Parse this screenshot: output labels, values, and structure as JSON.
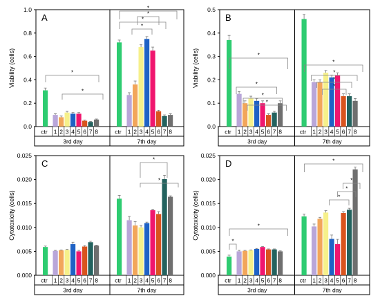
{
  "figure": {
    "panels_note": "",
    "colors": {
      "ctr": "#2ecc71",
      "s1": "#b9a6d9",
      "s2": "#f2a65a",
      "s3": "#f6f08a",
      "s4": "#1f62c5",
      "s5": "#f0166e",
      "s6": "#d9541e",
      "s7": "#23625e",
      "s8": "#6f6f6f"
    }
  },
  "chart_data": [
    {
      "panel": "A",
      "type": "bar",
      "ylabel": "Viability (cells)",
      "ylim": [
        0,
        1.0
      ],
      "yticks": [
        "0.0",
        "0.2",
        "0.4",
        "0.6",
        "0.8",
        "1.0"
      ],
      "categories": [
        "ctr",
        "1",
        "2",
        "3",
        "4",
        "5",
        "6",
        "7",
        "8"
      ],
      "groups": [
        "3rd day",
        "7th day"
      ],
      "series": [
        {
          "group": "3rd day",
          "values": [
            0.31,
            0.1,
            0.08,
            0.12,
            0.11,
            0.11,
            0.05,
            0.04,
            0.06
          ],
          "errors": [
            0.02,
            0.01,
            0.01,
            0.01,
            0.01,
            0.01,
            0.005,
            0.005,
            0.005
          ]
        },
        {
          "group": "7th day",
          "values": [
            0.72,
            0.27,
            0.36,
            0.68,
            0.75,
            0.65,
            0.13,
            0.09,
            0.1
          ],
          "errors": [
            0.02,
            0.02,
            0.03,
            0.02,
            0.02,
            0.03,
            0.01,
            0.01,
            0.01
          ]
        }
      ],
      "annotation": "*"
    },
    {
      "panel": "B",
      "type": "bar",
      "ylabel": "Viability (cells)",
      "ylim": [
        0,
        0.5
      ],
      "yticks": [
        "0.0",
        "0.1",
        "0.2",
        "0.3",
        "0.4",
        "0.5"
      ],
      "categories": [
        "ctr",
        "1",
        "2",
        "3",
        "4",
        "5",
        "6",
        "7",
        "8"
      ],
      "groups": [
        "3rd day",
        "7th day"
      ],
      "series": [
        {
          "group": "3rd day",
          "values": [
            0.37,
            0.14,
            0.1,
            0.12,
            0.11,
            0.1,
            0.05,
            0.06,
            0.1
          ],
          "errors": [
            0.02,
            0.01,
            0.01,
            0.01,
            0.01,
            0.01,
            0.005,
            0.005,
            0.01
          ]
        },
        {
          "group": "7th day",
          "values": [
            0.46,
            0.19,
            0.19,
            0.23,
            0.21,
            0.22,
            0.13,
            0.13,
            0.11
          ],
          "errors": [
            0.02,
            0.01,
            0.01,
            0.01,
            0.01,
            0.01,
            0.01,
            0.01,
            0.01
          ]
        }
      ],
      "annotation": "*"
    },
    {
      "panel": "C",
      "type": "bar",
      "ylabel": "Cytotoxicity (cells)",
      "ylim": [
        0,
        0.025
      ],
      "yticks": [
        "0.000",
        "0.005",
        "0.010",
        "0.015",
        "0.020",
        "0.025"
      ],
      "categories": [
        "ctr",
        "1",
        "2",
        "3",
        "4",
        "5",
        "6",
        "7",
        "8"
      ],
      "groups": [
        "3rd day",
        "7th day"
      ],
      "series": [
        {
          "group": "3rd day",
          "values": [
            0.0059,
            0.0051,
            0.0052,
            0.0053,
            0.0065,
            0.005,
            0.006,
            0.0069,
            0.0062
          ],
          "errors": [
            0.0002,
            0.0001,
            0.0001,
            0.0001,
            0.0004,
            0.0002,
            0.0002,
            0.0002,
            0.0001
          ]
        },
        {
          "group": "7th day",
          "values": [
            0.016,
            0.0115,
            0.0104,
            0.01,
            0.0109,
            0.0136,
            0.0128,
            0.0201,
            0.0164
          ],
          "errors": [
            0.0007,
            0.0008,
            0.0008,
            0.0004,
            0.0002,
            0.0002,
            0.0005,
            0.0008,
            0.0002
          ]
        }
      ],
      "annotation": "*"
    },
    {
      "panel": "D",
      "type": "bar",
      "ylabel": "Cytotoxicity (cells)",
      "ylim": [
        0,
        0.025
      ],
      "yticks": [
        "0.000",
        "0.005",
        "0.010",
        "0.015",
        "0.020",
        "0.025"
      ],
      "categories": [
        "ctr",
        "1",
        "2",
        "3",
        "4",
        "5",
        "6",
        "7",
        "8"
      ],
      "groups": [
        "3rd day",
        "7th day"
      ],
      "series": [
        {
          "group": "3rd day",
          "values": [
            0.0039,
            0.005,
            0.0051,
            0.0052,
            0.0055,
            0.0059,
            0.0054,
            0.0054,
            0.005
          ],
          "errors": [
            0.0003,
            0.0002,
            0.0001,
            0.0001,
            0.0001,
            0.0001,
            0.0001,
            0.0001,
            0.0001
          ]
        },
        {
          "group": "7th day",
          "values": [
            0.0123,
            0.0102,
            0.0118,
            0.0131,
            0.0076,
            0.0065,
            0.013,
            0.0137,
            0.0221
          ],
          "errors": [
            0.0005,
            0.0005,
            0.0003,
            0.0004,
            0.0008,
            0.001,
            0.0003,
            0.0003,
            0.0005
          ]
        }
      ],
      "annotation": "*"
    }
  ]
}
